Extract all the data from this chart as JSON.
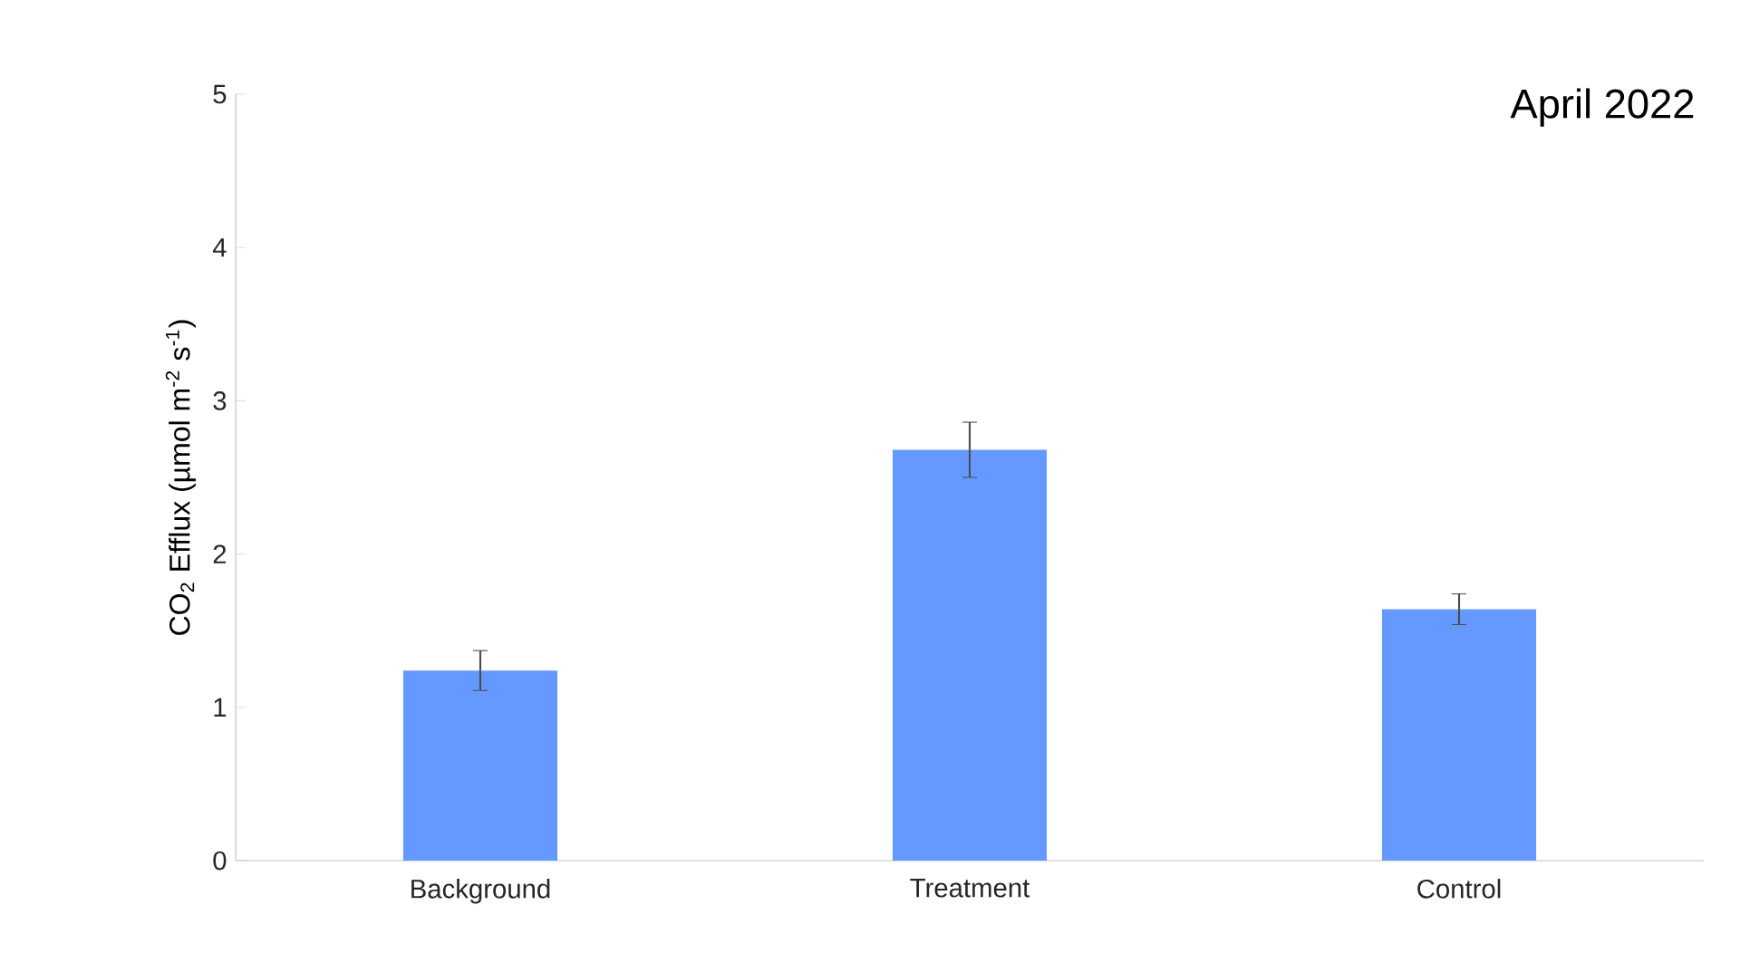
{
  "chart_data": {
    "type": "bar",
    "title": "April 2022",
    "ylabel": "CO$_{2}$ Efflux (µmol m$^{-2}$ s$^{-1}$)",
    "categories": [
      "Background",
      "Treatment",
      "Control"
    ],
    "values": [
      1.24,
      2.68,
      1.64
    ],
    "errors": [
      0.13,
      0.18,
      0.1
    ],
    "color": "#6699ff",
    "ylim": [
      0,
      5
    ],
    "yticks": [
      0,
      1,
      2,
      3,
      4,
      5
    ],
    "grid": false
  }
}
